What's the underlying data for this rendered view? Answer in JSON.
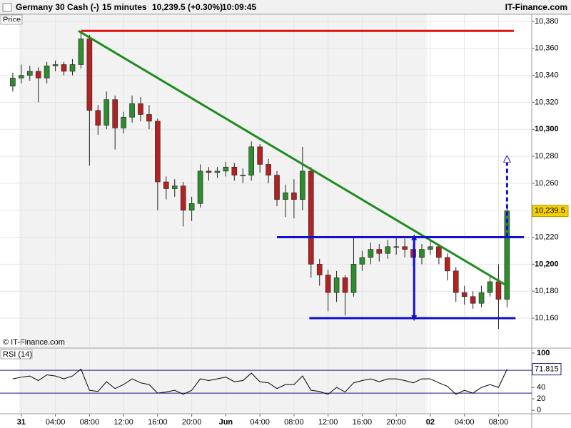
{
  "chart_data": {
    "type": "candlestick",
    "title": "Germany 30 Cash (-)",
    "interval": "15 minutes",
    "quote": "10,239.5 (+0.30%)",
    "time": "10:09:45",
    "source": "IT-Finance.com",
    "ylabel": "Price",
    "watermark": "© IT-Finance.com",
    "grid": true,
    "up_color": "#2e8b2e",
    "down_color": "#b22222",
    "xlim": [
      -2.5,
      59.9
    ],
    "xticks": [
      {
        "value": 0,
        "label": "31"
      },
      {
        "value": 4,
        "label": "04:00"
      },
      {
        "value": 8,
        "label": "08:00"
      },
      {
        "value": 12,
        "label": "12:00"
      },
      {
        "value": 16,
        "label": "16:00"
      },
      {
        "value": 20,
        "label": "20:00"
      },
      {
        "value": 24,
        "label": "Jun"
      },
      {
        "value": 28,
        "label": "04:00"
      },
      {
        "value": 32,
        "label": "08:00"
      },
      {
        "value": 36,
        "label": "12:00"
      },
      {
        "value": 40,
        "label": "16:00"
      },
      {
        "value": 44,
        "label": "20:00"
      },
      {
        "value": 48,
        "label": "02"
      },
      {
        "value": 52,
        "label": "04:00"
      },
      {
        "value": 56,
        "label": "08:00"
      }
    ],
    "ylim": [
      10137.8,
      10387.4
    ],
    "yticks": [
      {
        "value": 10160,
        "label": "10,160"
      },
      {
        "value": 10180,
        "label": "10,180"
      },
      {
        "value": 10200,
        "label": "10,200"
      },
      {
        "value": 10220,
        "label": "10,220"
      },
      {
        "value": 10240,
        "label": "10,240"
      },
      {
        "value": 10260,
        "label": "10,260"
      },
      {
        "value": 10280,
        "label": "10,280"
      },
      {
        "value": 10300,
        "label": "10,300"
      },
      {
        "value": 10320,
        "label": "10,320"
      },
      {
        "value": 10340,
        "label": "10,340"
      },
      {
        "value": 10360,
        "label": "10,360"
      },
      {
        "value": 10380,
        "label": "10,380"
      }
    ],
    "last_price": {
      "value": 10239.5,
      "label": "10,239.5"
    },
    "x": [
      -1,
      0,
      1,
      2,
      3,
      4,
      5,
      6,
      7,
      8,
      9,
      10,
      11,
      12,
      13,
      14,
      15,
      16,
      17,
      18,
      19,
      20,
      21,
      22,
      23,
      24,
      25,
      26,
      27,
      28,
      29,
      30,
      31,
      32,
      33,
      34,
      35,
      36,
      37,
      38,
      39,
      40,
      41,
      42,
      43,
      44,
      45,
      46,
      47,
      48,
      49,
      50,
      51,
      52,
      53,
      54,
      55,
      56,
      57
    ],
    "open": [
      10332,
      10338,
      10340,
      10343,
      10338,
      10347,
      10348,
      10343,
      10348,
      10367,
      10314,
      10303,
      10322,
      10301,
      10309,
      10319,
      10311,
      10306,
      10261,
      10256,
      10258,
      10240,
      10245,
      10269,
      10268,
      10269,
      10272,
      10266,
      10266,
      10287,
      10274,
      10266,
      10248,
      10253,
      10248,
      10269,
      10200,
      10192,
      10179,
      10190,
      10179,
      10200,
      10205,
      10211,
      10208,
      10213,
      10213,
      10211,
      10205,
      10211,
      10213,
      10205,
      10195,
      10179,
      10176,
      10171,
      10179,
      10187,
      10174
    ],
    "high": [
      10342,
      10348,
      10347,
      10346,
      10350,
      10351,
      10350,
      10352,
      10373,
      10370,
      10318,
      10328,
      10325,
      10313,
      10325,
      10324,
      10318,
      10308,
      10265,
      10263,
      10261,
      10250,
      10274,
      10272,
      10272,
      10276,
      10275,
      10271,
      10291,
      10289,
      10278,
      10269,
      10259,
      10263,
      10287,
      10272,
      10204,
      10196,
      10195,
      10192,
      10220,
      10210,
      10216,
      10215,
      10218,
      10220,
      10219,
      10214,
      10215,
      10217,
      10215,
      10208,
      10198,
      10184,
      10180,
      10184,
      10192,
      10200,
      10245
    ],
    "low": [
      10328,
      10334,
      10336,
      10320,
      10334,
      10343,
      10340,
      10340,
      10345,
      10273,
      10296,
      10300,
      10285,
      10297,
      10305,
      10306,
      10300,
      10240,
      10248,
      10250,
      10228,
      10232,
      10242,
      10262,
      10264,
      10265,
      10262,
      10260,
      10262,
      10268,
      10260,
      10243,
      10235,
      10234,
      10240,
      10190,
      10184,
      10165,
      10172,
      10162,
      10176,
      10195,
      10200,
      10202,
      10204,
      10207,
      10205,
      10198,
      10200,
      10207,
      10200,
      10188,
      10172,
      10170,
      10167,
      10168,
      10176,
      10152,
      10168
    ],
    "close": [
      10338,
      10340,
      10343,
      10338,
      10347,
      10348,
      10343,
      10348,
      10367,
      10314,
      10303,
      10322,
      10301,
      10309,
      10319,
      10311,
      10306,
      10261,
      10256,
      10258,
      10240,
      10245,
      10269,
      10268,
      10269,
      10272,
      10266,
      10266,
      10287,
      10274,
      10266,
      10248,
      10253,
      10248,
      10269,
      10200,
      10192,
      10179,
      10190,
      10179,
      10200,
      10205,
      10211,
      10208,
      10213,
      10213,
      10211,
      10205,
      10211,
      10213,
      10205,
      10195,
      10179,
      10176,
      10171,
      10179,
      10187,
      10174,
      10239.5
    ],
    "lines": [
      {
        "x": [
          7,
          57.8
        ],
        "y": [
          10373,
          10373
        ],
        "color": "#e01010"
      },
      {
        "x": [
          6.7,
          57
        ],
        "y": [
          10373,
          10184
        ],
        "color": "#1e8c1e"
      },
      {
        "x": [
          30,
          59
        ],
        "y": [
          10220,
          10220
        ],
        "color": "#1010d0"
      },
      {
        "x": [
          33.8,
          58
        ],
        "y": [
          10160,
          10160
        ],
        "color": "#1010d0"
      },
      {
        "x": [
          46.1,
          46.1
        ],
        "y": [
          10220,
          10160
        ],
        "color": "#1010d0",
        "arrow": "both"
      },
      {
        "x": [
          57,
          57
        ],
        "y": [
          10220,
          10278
        ],
        "color": "#1010d0",
        "arrow": "end",
        "dashed": true
      }
    ],
    "rsi": {
      "title": "RSI (14)",
      "color": "#000000",
      "level_color": "#1a1a80",
      "ylim": [
        -6,
        107.5
      ],
      "yticks": [
        0,
        20,
        40,
        100
      ],
      "levels": [
        70,
        30
      ],
      "values": [
        55,
        58,
        60,
        52,
        62,
        60,
        55,
        60,
        72,
        35,
        33,
        50,
        38,
        45,
        55,
        48,
        45,
        30,
        32,
        35,
        28,
        35,
        55,
        52,
        55,
        58,
        50,
        52,
        65,
        50,
        48,
        38,
        45,
        45,
        60,
        35,
        33,
        28,
        40,
        32,
        48,
        52,
        55,
        50,
        55,
        55,
        52,
        48,
        55,
        55,
        48,
        42,
        28,
        35,
        30,
        40,
        45,
        40,
        71.815
      ]
    }
  }
}
